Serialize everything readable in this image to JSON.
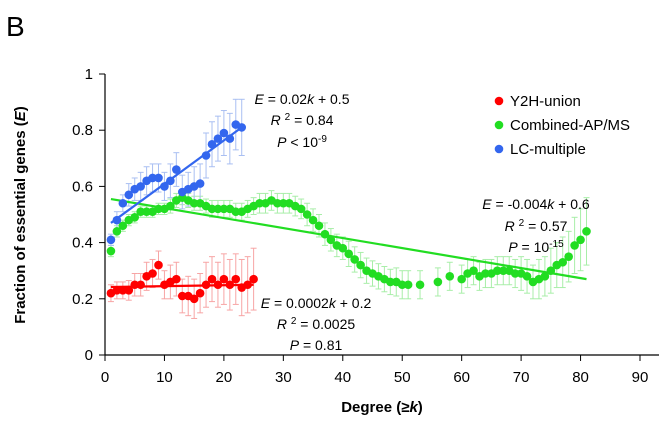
{
  "panel_label": "B",
  "chart_data": {
    "type": "scatter",
    "xlabel": "Degree (≥k)",
    "ylabel": "Fraction of essential genes (E)",
    "xlim": [
      0,
      90
    ],
    "ylim": [
      0,
      1
    ],
    "xticks": [
      0,
      10,
      20,
      30,
      40,
      50,
      60,
      70,
      80,
      90
    ],
    "yticks": [
      0,
      0.2,
      0.4,
      0.6,
      0.8,
      1
    ],
    "grid": false,
    "legend_position": "top-right",
    "series": [
      {
        "name": "Y2H-union",
        "color": "#ff0000",
        "error_color": "#f7a5a5",
        "x": [
          1,
          2,
          3,
          4,
          5,
          6,
          7,
          8,
          9,
          10,
          11,
          12,
          13,
          14,
          15,
          16,
          17,
          18,
          19,
          20,
          21,
          22,
          23,
          24,
          25
        ],
        "y": [
          0.22,
          0.23,
          0.23,
          0.23,
          0.25,
          0.25,
          0.28,
          0.29,
          0.32,
          0.25,
          0.26,
          0.27,
          0.21,
          0.21,
          0.2,
          0.22,
          0.25,
          0.27,
          0.25,
          0.27,
          0.25,
          0.27,
          0.24,
          0.25,
          0.27
        ],
        "err": [
          0.03,
          0.03,
          0.03,
          0.035,
          0.04,
          0.04,
          0.05,
          0.05,
          0.05,
          0.05,
          0.06,
          0.06,
          0.06,
          0.07,
          0.07,
          0.07,
          0.08,
          0.08,
          0.08,
          0.09,
          0.09,
          0.09,
          0.1,
          0.1,
          0.11
        ],
        "fit": {
          "x": [
            1,
            25
          ],
          "y": [
            0.242,
            0.25
          ]
        },
        "equation": {
          "lhs": "E",
          "rhs": " = 0.0002k + 0.2",
          "r2_lhs": "R",
          "r2_sup": "2",
          "r2_rhs": " = 0.0025",
          "p_lhs": "P",
          "p_rhs": " = 0.81"
        }
      },
      {
        "name": "Combined-AP/MS",
        "color": "#22dd22",
        "error_color": "#a8eea8",
        "x": [
          1,
          2,
          3,
          4,
          5,
          6,
          7,
          8,
          9,
          10,
          11,
          12,
          13,
          14,
          15,
          16,
          17,
          18,
          19,
          20,
          21,
          22,
          23,
          24,
          25,
          26,
          27,
          28,
          29,
          30,
          31,
          32,
          33,
          34,
          35,
          36,
          37,
          38,
          39,
          40,
          41,
          42,
          43,
          44,
          45,
          46,
          47,
          48,
          49,
          50,
          51,
          53,
          56,
          58,
          60,
          61,
          62,
          63,
          64,
          65,
          66,
          67,
          68,
          69,
          70,
          71,
          72,
          73,
          74,
          75,
          76,
          77,
          78,
          79,
          80,
          81
        ],
        "y": [
          0.37,
          0.44,
          0.46,
          0.48,
          0.49,
          0.51,
          0.51,
          0.51,
          0.52,
          0.52,
          0.53,
          0.55,
          0.56,
          0.55,
          0.54,
          0.54,
          0.53,
          0.52,
          0.52,
          0.52,
          0.52,
          0.51,
          0.51,
          0.52,
          0.53,
          0.54,
          0.54,
          0.55,
          0.54,
          0.54,
          0.54,
          0.53,
          0.52,
          0.5,
          0.48,
          0.46,
          0.43,
          0.41,
          0.39,
          0.38,
          0.36,
          0.34,
          0.32,
          0.3,
          0.29,
          0.28,
          0.27,
          0.26,
          0.26,
          0.25,
          0.25,
          0.25,
          0.26,
          0.28,
          0.27,
          0.29,
          0.3,
          0.28,
          0.29,
          0.29,
          0.3,
          0.3,
          0.3,
          0.29,
          0.29,
          0.28,
          0.26,
          0.27,
          0.28,
          0.3,
          0.32,
          0.33,
          0.35,
          0.39,
          0.41,
          0.44
        ],
        "err": [
          0.02,
          0.02,
          0.02,
          0.02,
          0.02,
          0.02,
          0.02,
          0.02,
          0.02,
          0.02,
          0.025,
          0.025,
          0.025,
          0.025,
          0.025,
          0.025,
          0.025,
          0.03,
          0.03,
          0.03,
          0.03,
          0.03,
          0.03,
          0.03,
          0.03,
          0.035,
          0.035,
          0.035,
          0.035,
          0.035,
          0.035,
          0.035,
          0.035,
          0.04,
          0.04,
          0.04,
          0.04,
          0.04,
          0.04,
          0.04,
          0.045,
          0.045,
          0.045,
          0.045,
          0.045,
          0.045,
          0.045,
          0.045,
          0.05,
          0.05,
          0.05,
          0.05,
          0.05,
          0.05,
          0.05,
          0.05,
          0.05,
          0.05,
          0.05,
          0.05,
          0.05,
          0.05,
          0.05,
          0.05,
          0.06,
          0.06,
          0.06,
          0.07,
          0.07,
          0.08,
          0.08,
          0.09,
          0.09,
          0.1,
          0.11,
          0.12
        ],
        "fit": {
          "x": [
            1,
            81
          ],
          "y": [
            0.555,
            0.27
          ]
        },
        "equation": {
          "lhs": "E",
          "rhs": " = -0.004k + 0.6",
          "r2_lhs": "R",
          "r2_sup": "2",
          "r2_rhs": " = 0.57",
          "p_lhs": "P",
          "p_rhs": " = 10",
          "p_sup": "-15"
        }
      },
      {
        "name": "LC-multiple",
        "color": "#3366ee",
        "error_color": "#a9bff2",
        "x": [
          1,
          2,
          3,
          4,
          5,
          6,
          7,
          8,
          9,
          10,
          11,
          12,
          13,
          14,
          15,
          16,
          17,
          18,
          19,
          20,
          21,
          22,
          23
        ],
        "y": [
          0.41,
          0.48,
          0.54,
          0.57,
          0.59,
          0.6,
          0.62,
          0.63,
          0.63,
          0.6,
          0.62,
          0.66,
          0.58,
          0.59,
          0.6,
          0.61,
          0.71,
          0.75,
          0.77,
          0.79,
          0.77,
          0.82,
          0.81
        ],
        "err": [
          0.02,
          0.03,
          0.03,
          0.04,
          0.04,
          0.05,
          0.05,
          0.05,
          0.05,
          0.05,
          0.06,
          0.06,
          0.06,
          0.06,
          0.07,
          0.07,
          0.08,
          0.08,
          0.08,
          0.08,
          0.09,
          0.09,
          0.1
        ],
        "fit": {
          "x": [
            1,
            23
          ],
          "y": [
            0.47,
            0.81
          ]
        },
        "equation": {
          "lhs": "E",
          "rhs": " = 0.02k + 0.5",
          "r2_lhs": "R",
          "r2_sup": "2",
          "r2_rhs": " = 0.84",
          "p_lhs": "P",
          "p_rhs": " < 10",
          "p_sup": "-9"
        }
      }
    ]
  }
}
